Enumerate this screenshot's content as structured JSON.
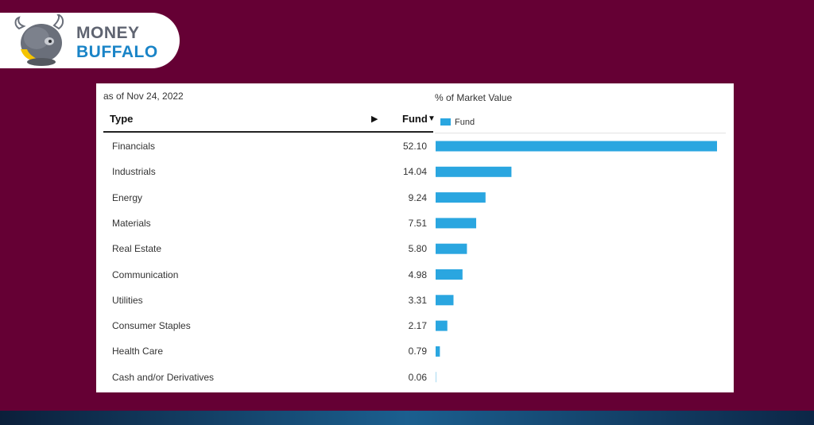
{
  "brand": {
    "line1": "MONEY",
    "line2": "BUFFALO"
  },
  "as_of": "as of Nov 24, 2022",
  "chart_title": "% of Market Value",
  "columns": {
    "type": "Type",
    "fund": "Fund",
    "expand_glyph": "▶",
    "sort_glyph": "▼"
  },
  "legend": {
    "label": "Fund",
    "color": "#2aa6e0"
  },
  "colors": {
    "background": "#650034",
    "bar": "#2aa6e0",
    "brand_blue": "#1a84c7",
    "brand_gray": "#5f6471"
  },
  "icons": [
    "buffalo-logo-icon",
    "expand-arrow-icon",
    "sort-desc-icon"
  ],
  "rows": [
    {
      "label": "Financials",
      "value_text": "52.10"
    },
    {
      "label": "Industrials",
      "value_text": "14.04"
    },
    {
      "label": "Energy",
      "value_text": "9.24"
    },
    {
      "label": "Materials",
      "value_text": "7.51"
    },
    {
      "label": "Real Estate",
      "value_text": "5.80"
    },
    {
      "label": "Communication",
      "value_text": "4.98"
    },
    {
      "label": "Utilities",
      "value_text": "3.31"
    },
    {
      "label": "Consumer Staples",
      "value_text": "2.17"
    },
    {
      "label": "Health Care",
      "value_text": "0.79"
    },
    {
      "label": "Cash and/or Derivatives",
      "value_text": "0.06"
    }
  ],
  "chart_data": {
    "type": "bar",
    "orientation": "horizontal",
    "title": "% of Market Value",
    "categories": [
      "Financials",
      "Industrials",
      "Energy",
      "Materials",
      "Real Estate",
      "Communication",
      "Utilities",
      "Consumer Staples",
      "Health Care",
      "Cash and/or Derivatives"
    ],
    "series": [
      {
        "name": "Fund",
        "values": [
          52.1,
          14.04,
          9.24,
          7.51,
          5.8,
          4.98,
          3.31,
          2.17,
          0.79,
          0.06
        ]
      }
    ],
    "legend": "top-left",
    "grid": false
  }
}
